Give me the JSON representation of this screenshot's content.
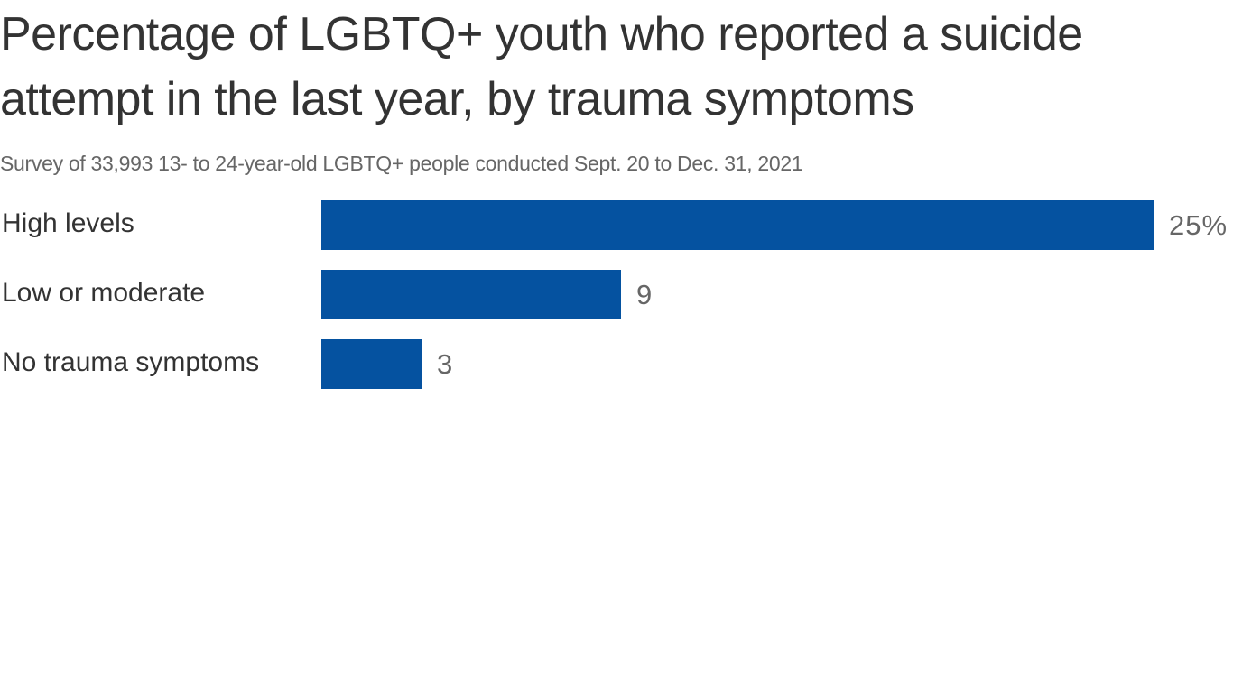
{
  "chart_data": {
    "type": "bar",
    "orientation": "horizontal",
    "title": "Percentage of LGBTQ+ youth who reported a suicide attempt in the last year, by trauma symptoms",
    "subtitle": "Survey of 33,993 13- to 24-year-old LGBTQ+ people conducted Sept. 20 to Dec. 31, 2021",
    "categories": [
      "High levels",
      "Low or moderate",
      "No trauma symptoms"
    ],
    "values": [
      25,
      9,
      3
    ],
    "value_labels": [
      "25%",
      "9",
      "3"
    ],
    "xlabel": "",
    "ylabel": "",
    "xlim": [
      0,
      25
    ],
    "grid": false,
    "legend": null,
    "bar_color": "#0552a0"
  },
  "header": {
    "title": "Percentage of LGBTQ+ youth who reported a suicide attempt in the last year, by trauma symptoms",
    "subtitle": "Survey of 33,993 13- to 24-year-old LGBTQ+ people conducted Sept. 20 to Dec. 31, 2021"
  }
}
